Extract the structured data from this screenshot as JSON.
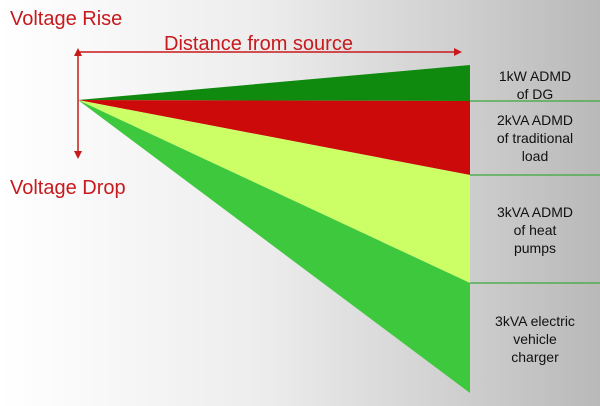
{
  "labels": {
    "voltage_rise": "Voltage Rise",
    "voltage_drop": "Voltage Drop",
    "distance": "Distance from source"
  },
  "segments": [
    {
      "id": "dg",
      "text": "1kW ADMD\nof DG",
      "color": "#0f8a0f"
    },
    {
      "id": "traditional",
      "text": "2kVA ADMD\nof traditional\nload",
      "color": "#cc0a0a"
    },
    {
      "id": "heat-pumps",
      "text": "3kVA ADMD\nof heat\npumps",
      "color": "#ccff66"
    },
    {
      "id": "ev",
      "text": "3kVA electric\nvehicle\ncharger",
      "color": "#3ec83e"
    }
  ],
  "colors": {
    "arrow": "#c8191c",
    "separator": "#3aa83a"
  }
}
